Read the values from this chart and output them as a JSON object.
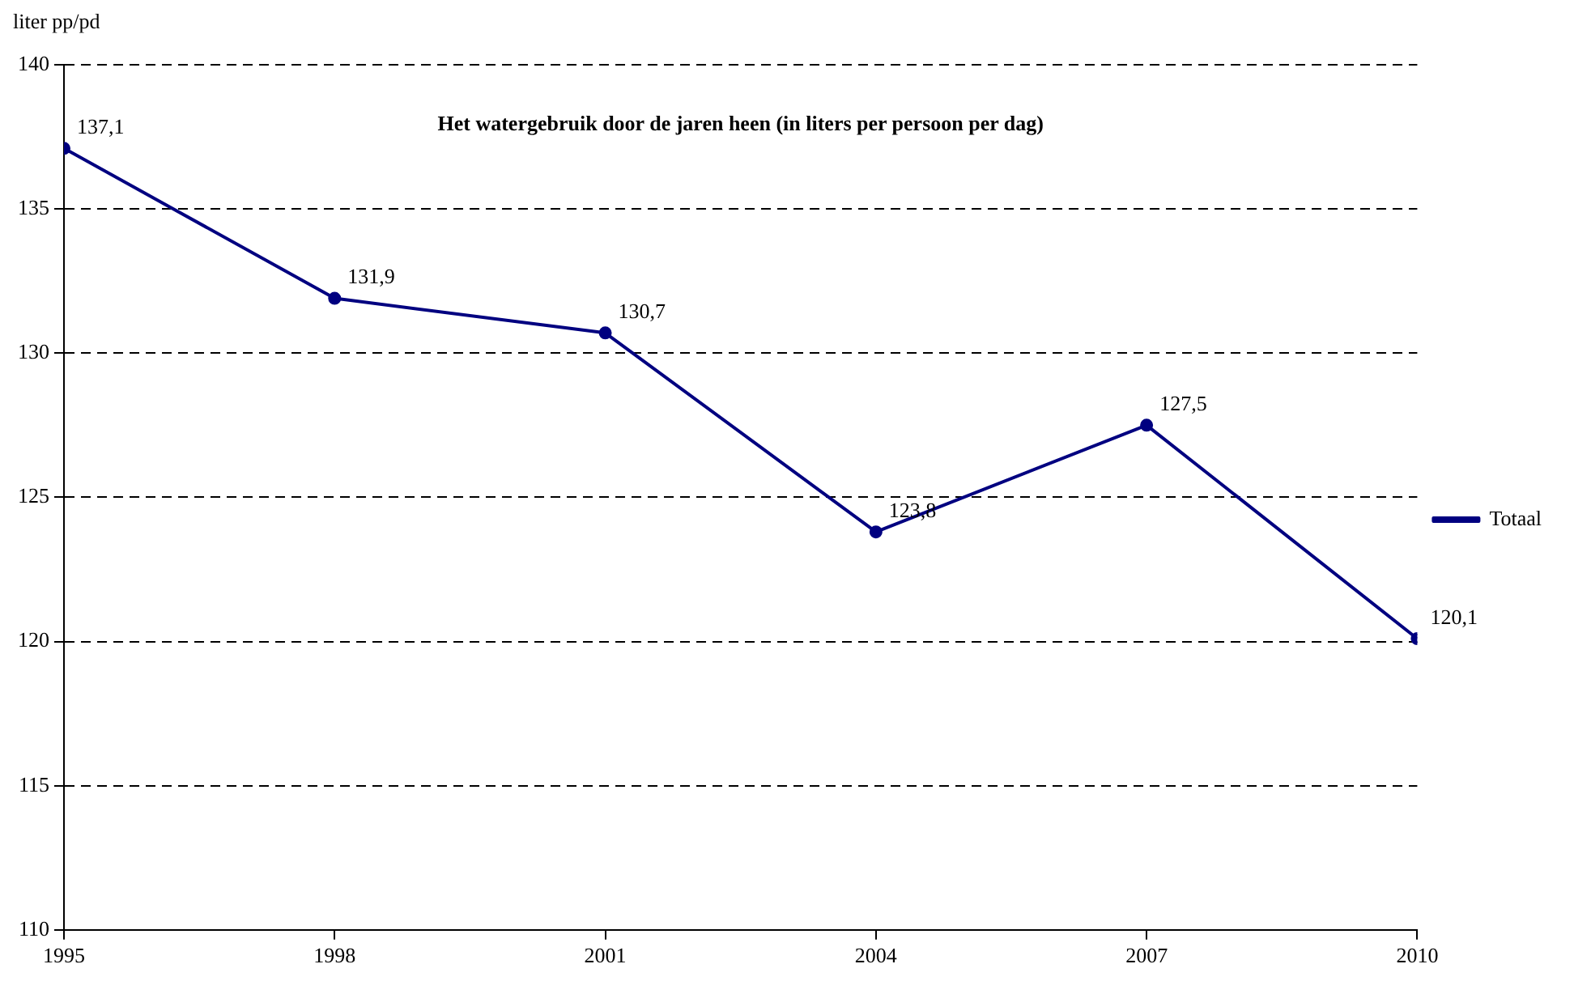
{
  "chart_data": {
    "type": "line",
    "title": "Het watergebruik door de jaren heen (in liters per persoon per dag)",
    "ylabel": "liter pp/pd",
    "x": [
      1995,
      1998,
      2001,
      2004,
      2007,
      2010
    ],
    "series": [
      {
        "name": "Totaal",
        "color": "#000080",
        "values": [
          137.1,
          131.9,
          130.7,
          123.8,
          127.5,
          120.1
        ],
        "value_labels": [
          "137,1",
          "131,9",
          "130,7",
          "123,8",
          "127,5",
          "120,1"
        ]
      }
    ],
    "xlim": [
      1995,
      2010
    ],
    "xticks": [
      1995,
      1998,
      2001,
      2004,
      2007,
      2010
    ],
    "ylim": [
      110,
      140
    ],
    "yticks": [
      110,
      115,
      120,
      125,
      130,
      135,
      140
    ],
    "grid": "y",
    "legend": "right",
    "marker": "circle",
    "line_style": "solid"
  }
}
